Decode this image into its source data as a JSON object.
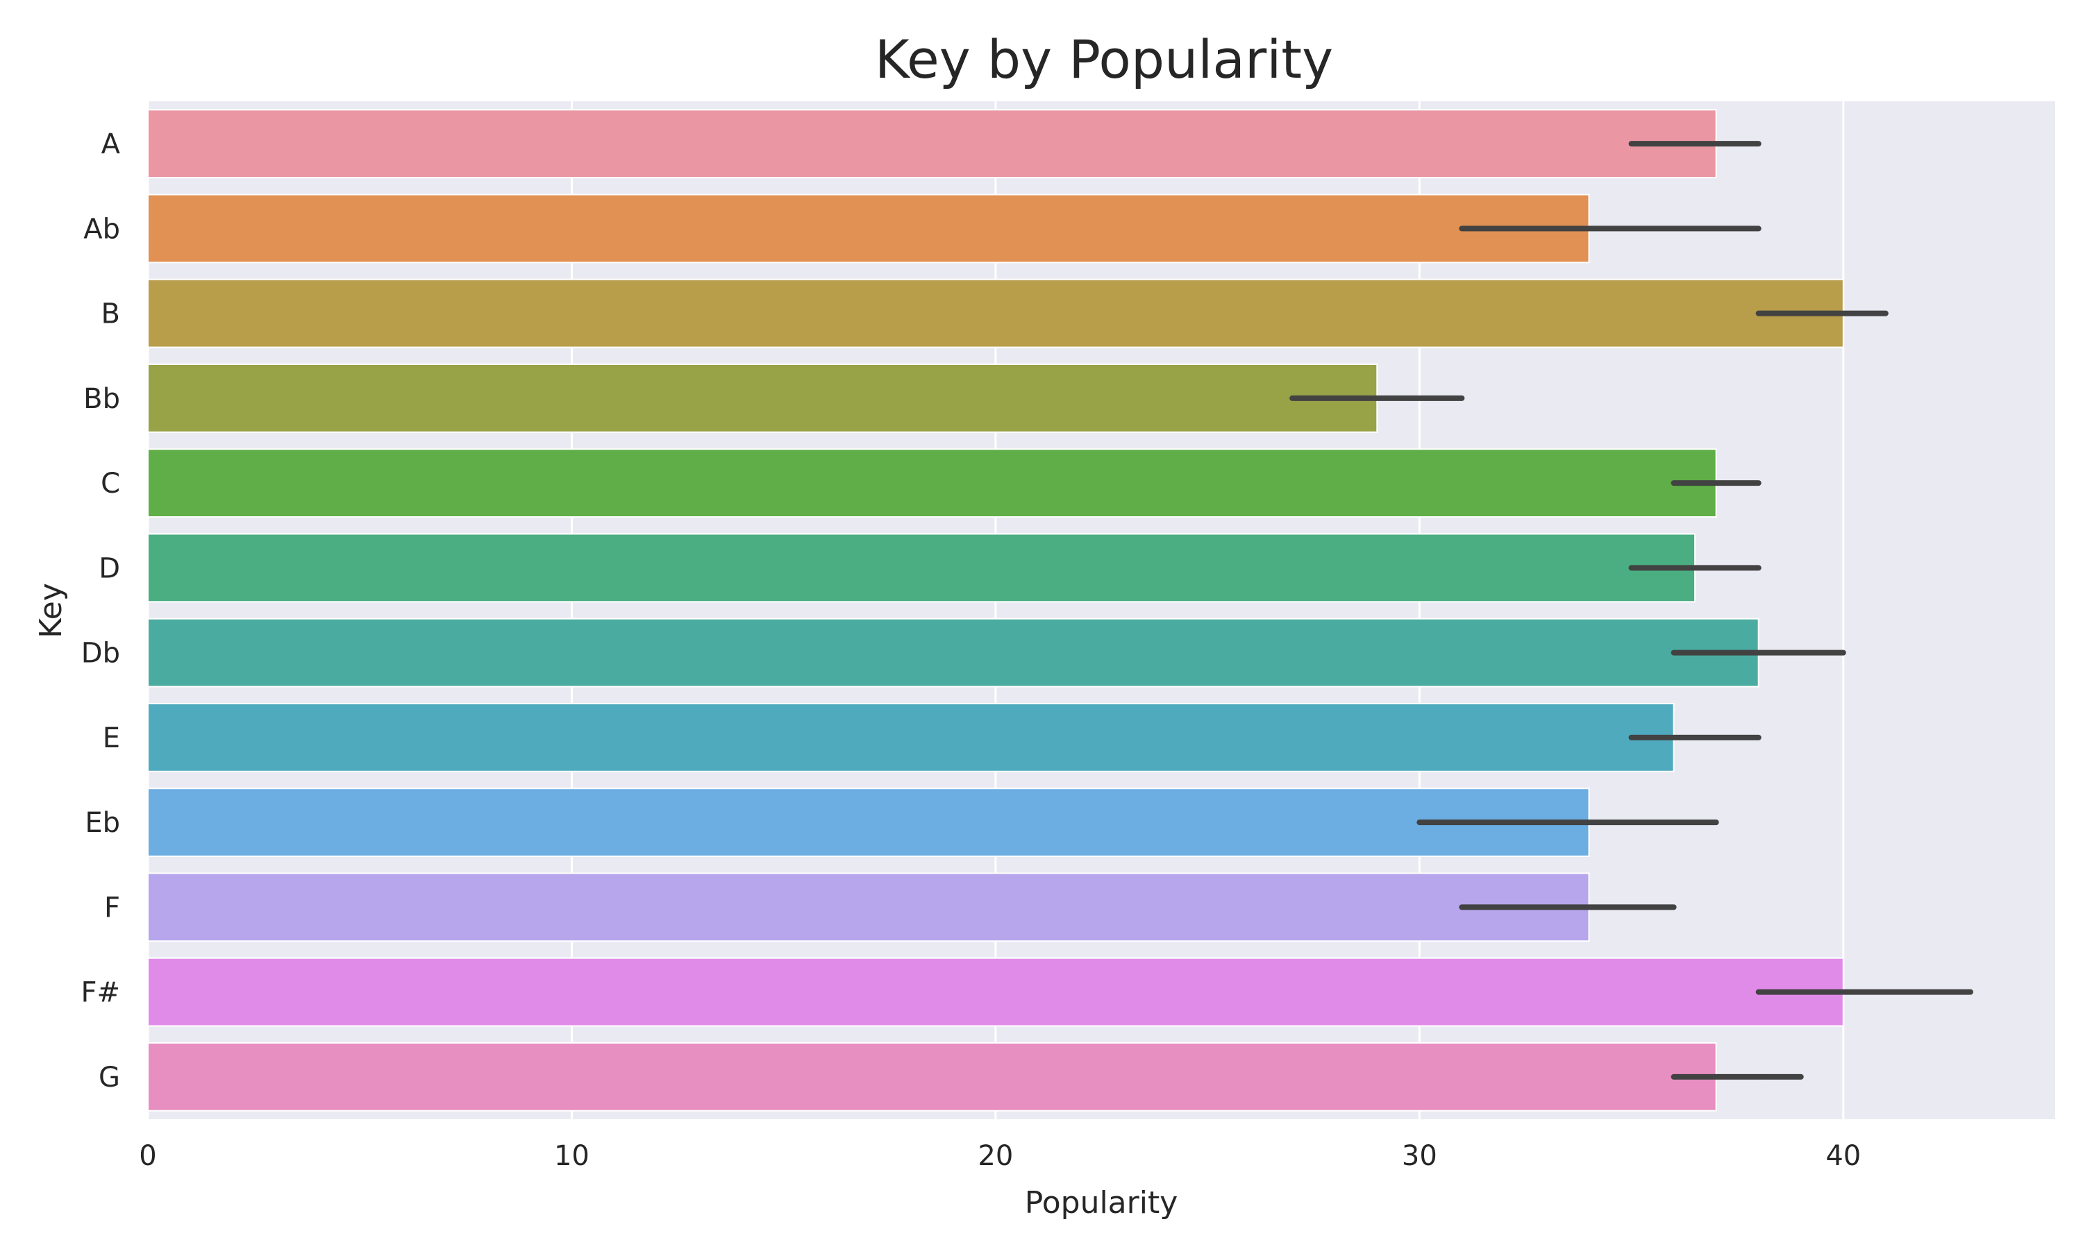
{
  "chart_data": {
    "type": "bar",
    "orientation": "horizontal",
    "title": "Key by Popularity",
    "xlabel": "Popularity",
    "ylabel": "Key",
    "xlim": [
      0,
      45
    ],
    "xticks": [
      0,
      10,
      20,
      30,
      40
    ],
    "grid": true,
    "background": "#EAEAF2",
    "error_bar_color": "#424242",
    "categories": [
      "A",
      "Ab",
      "B",
      "Bb",
      "C",
      "D",
      "Db",
      "E",
      "Eb",
      "F",
      "F#",
      "G"
    ],
    "values": [
      37,
      34,
      40,
      29,
      37,
      36.5,
      38,
      36,
      34,
      34,
      40,
      37
    ],
    "error_low": [
      35,
      31,
      38,
      27,
      36,
      35,
      36,
      35,
      30,
      31,
      38,
      36
    ],
    "error_high": [
      38,
      38,
      41,
      31,
      38,
      38,
      40,
      38,
      37,
      36,
      43,
      39
    ],
    "colors": [
      "#EA96A3",
      "#E19153",
      "#B89D4A",
      "#98A246",
      "#60AE47",
      "#4AAE82",
      "#4AACA1",
      "#4FAABE",
      "#6CADE2",
      "#B7A6EC",
      "#E18BE9",
      "#E88FC2"
    ]
  }
}
